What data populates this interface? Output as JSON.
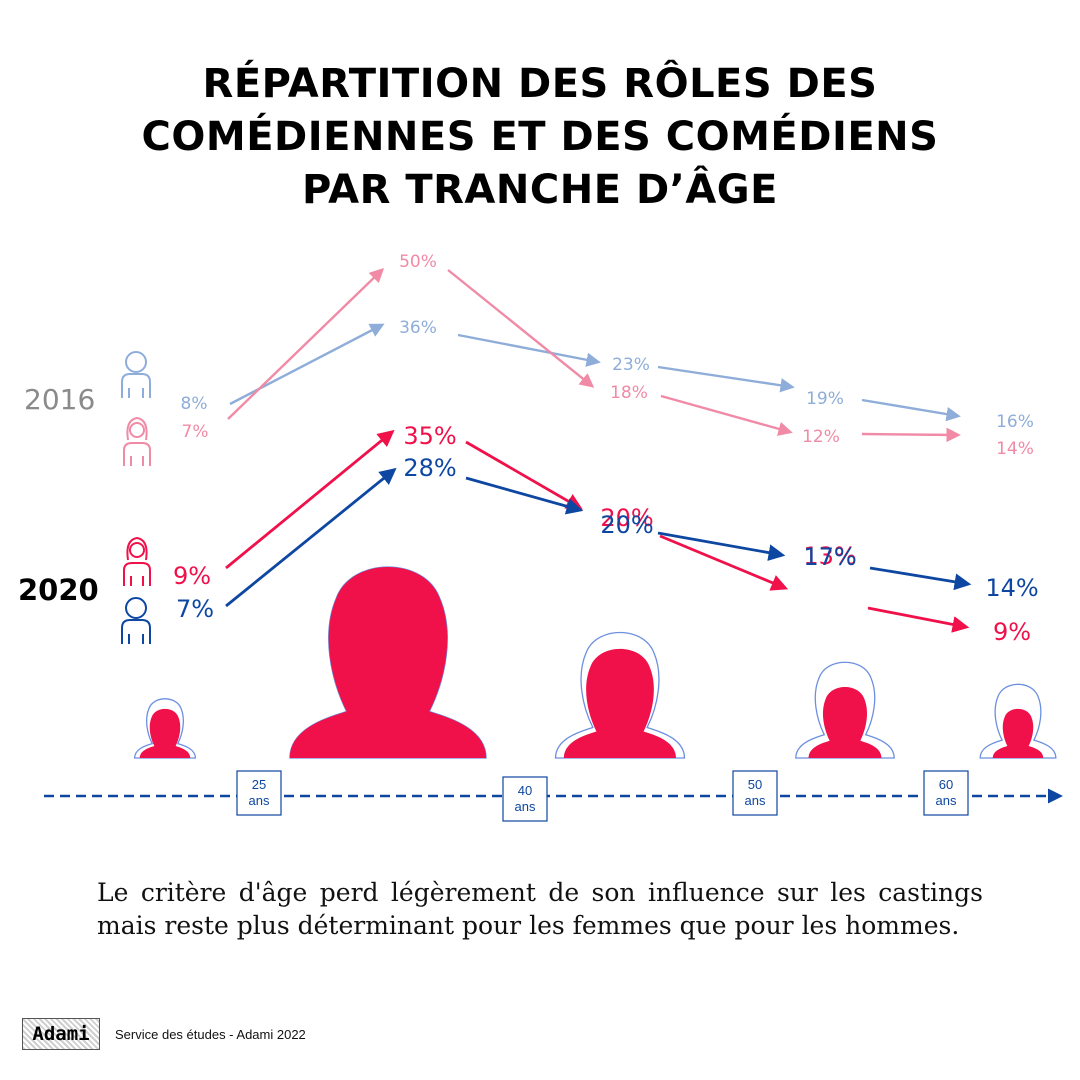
{
  "title_lines": [
    "RÉPARTITION DES RÔLES DES",
    "COMÉDIENNES ET DES COMÉDIENS",
    "PAR TRANCHE D’ÂGE"
  ],
  "chart_data": {
    "type": "line",
    "title": "RÉPARTITION DES RÔLES DES COMÉDIENNES ET DES COMÉDIENS PAR TRANCHE D’ÂGE",
    "groups": [
      {
        "name": "2016",
        "series": [
          {
            "role": "men",
            "color": "#8eadd9",
            "values": [
              8,
              36,
              23,
              19,
              16
            ],
            "labels": [
              "8%",
              "36%",
              "23%",
              "19%",
              "16%"
            ]
          },
          {
            "role": "women",
            "color": "#f08aa6",
            "values": [
              7,
              50,
              18,
              12,
              14
            ],
            "labels": [
              "7%",
              "50%",
              "18%",
              "12%",
              "14%"
            ]
          }
        ]
      },
      {
        "name": "2020",
        "series": [
          {
            "role": "women",
            "color": "#f0104a",
            "values": [
              9,
              35,
              20,
              13,
              9
            ],
            "labels": [
              "9%",
              "35%",
              "20%",
              "13%",
              "9%"
            ]
          },
          {
            "role": "men",
            "color": "#0d47a1",
            "values": [
              7,
              28,
              20,
              17,
              14
            ],
            "labels": [
              "7%",
              "28%",
              "20%",
              "17%",
              "14%"
            ]
          }
        ]
      }
    ],
    "x_axis": {
      "ticks": [
        {
          "value": "25",
          "unit": "ans"
        },
        {
          "value": "40",
          "unit": "ans"
        },
        {
          "value": "50",
          "unit": "ans"
        },
        {
          "value": "60",
          "unit": "ans"
        }
      ]
    }
  },
  "caption": "Le critère d'âge perd légèrement de son influence sur les castings mais reste plus déterminant pour les femmes que pour les hommes.",
  "footer": {
    "logo_text": "Adami",
    "source": "Service des études - Adami 2022"
  },
  "icons": {
    "man": "man-outline-icon",
    "woman": "woman-outline-icon",
    "silhouette": "woman-silhouette-icon"
  },
  "colors": {
    "women_2020": "#f0104a",
    "men_2020": "#0d47a1",
    "women_2016": "#f08aa6",
    "men_2016": "#8eadd9",
    "axis": "#0d47a1"
  }
}
